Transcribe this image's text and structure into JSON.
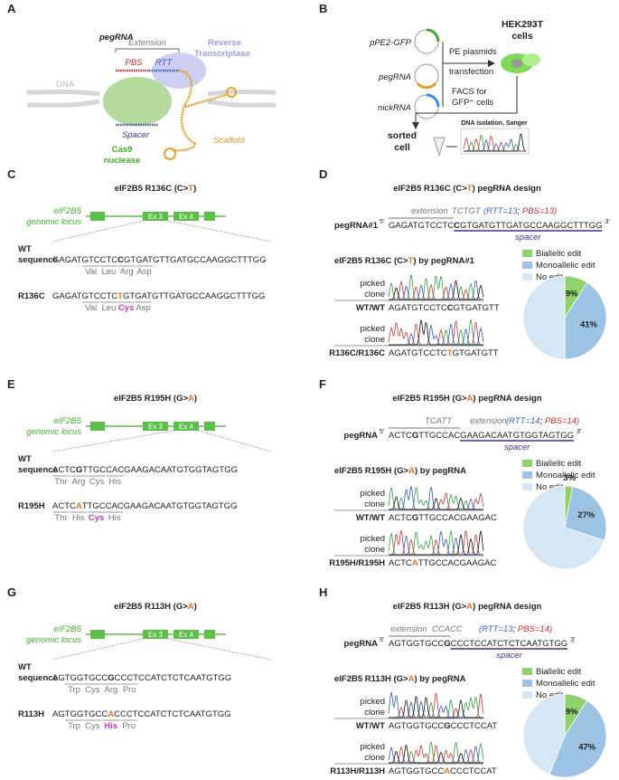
{
  "panels": {
    "A": {
      "letter": "A",
      "title": "pegRNA",
      "extension": "Extension",
      "pbs": "PBS",
      "rtt": "RTT",
      "rt": [
        "Reverse",
        "Transcriptase"
      ],
      "dna": "DNA",
      "spacer": "Spacer",
      "scaffold": "Scaffold",
      "cas9": [
        "Cas9",
        "nuclease"
      ]
    },
    "B": {
      "letter": "B",
      "plasmids": [
        "pPE2-GFP",
        "pegRNA",
        "nickRNA"
      ],
      "step1": [
        "PE plasmids",
        "transfection"
      ],
      "cells": [
        "HEK293T",
        "cells"
      ],
      "step2": [
        "FACS for",
        "GFP⁺ cells"
      ],
      "sorted": [
        "sorted",
        "cell"
      ],
      "sanger": "DNA isolation, Sanger"
    },
    "mutations": [
      {
        "letter": "C",
        "title": {
          "pre": "eIF2B5 R136C (C>",
          "alt": "T",
          "post": ")"
        },
        "locus": [
          "eIF2B5",
          "genomic locus"
        ],
        "exons": [
          "Ex 3",
          "Ex 4"
        ],
        "wt_label": [
          "WT",
          "sequence"
        ],
        "wt_seq": {
          "pre": "GAGATGTCCTC",
          "hi": "C",
          "post": "GTGATGTTGATGCCAAGGCTTTGG"
        },
        "wt_aa": [
          "Val",
          "Leu",
          "Arg",
          "Asp"
        ],
        "mut_label": "R136C",
        "mut_seq": {
          "pre": "GAGATGTCCTC",
          "hi": "T",
          "post": "GTGATGTTGATGCCAAGGCTTTGG"
        },
        "mut_aa": [
          "Val",
          "Leu",
          "Cys",
          "Asp"
        ]
      },
      {
        "letter": "E",
        "title": {
          "pre": "eIF2B5 R195H (G>",
          "alt": "A",
          "post": ")"
        },
        "locus": [
          "eIF2B5",
          "genomic locus"
        ],
        "exons": [
          "Ex 3",
          "Ex 4"
        ],
        "wt_label": [
          "WT",
          "sequence"
        ],
        "wt_seq": {
          "pre": "ACTC",
          "hi": "G",
          "post": "TTGCCACGAAGACAATGTGGTAGTGG"
        },
        "wt_aa": [
          "Thr",
          "Arg",
          "Cys",
          "His"
        ],
        "mut_label": "R195H",
        "mut_seq": {
          "pre": "ACTC",
          "hi": "A",
          "post": "TTGCCACGAAGACAATGTGGTAGTGG"
        },
        "mut_aa": [
          "Thr",
          "His",
          "Cys",
          "His"
        ]
      },
      {
        "letter": "G",
        "title": {
          "pre": "eIF2B5 R113H (G>",
          "alt": "A",
          "post": ")"
        },
        "locus": [
          "eIF2B5",
          "genomic locus"
        ],
        "exons": [
          "Ex 3",
          "Ex 4"
        ],
        "wt_label": [
          "WT",
          "sequence"
        ],
        "wt_seq": {
          "pre": "AGTGGTGCC",
          "hi": "G",
          "post": "CCCTCCATCTCTCAATGTGG"
        },
        "wt_aa": [
          "Trp",
          "Cys",
          "Arg",
          "Pro"
        ],
        "mut_label": "R113H",
        "mut_seq": {
          "pre": "AGTGGTGCC",
          "hi": "A",
          "post": "CCCTCCATCTCTCAATGTGG"
        },
        "mut_aa": [
          "Trp",
          "Cys",
          "His",
          "Pro"
        ]
      }
    ],
    "designs": [
      {
        "letter": "D",
        "title": {
          "pre": "eIF2B5 R136C (C>",
          "alt": "T",
          "post": ") pegRNA design"
        },
        "ext": "extension",
        "ext_seq": "TCTGT",
        "params": {
          "open": "(",
          "rtt": "RTT=13",
          "sep": "; ",
          "pbs": "PBS=13",
          "close": ")"
        },
        "name": "pegRNA#1",
        "five": "5'",
        "three": "3'",
        "seq": {
          "pre": "GAGATGTCCTC",
          "hi": "C",
          "post": "GTGATGTTGATGCCAAGGCTTTGG"
        },
        "spacer": "spacer",
        "subtitle": {
          "pre": "eIF2B5 R136C (C>",
          "alt": "T",
          "post": ") by pegRNA#1"
        },
        "traces": [
          {
            "label": [
              "picked",
              "clone"
            ],
            "geno": "WT/WT",
            "seq": {
              "pre": "AGATGTCCTC",
              "hi": "C",
              "post": "GTGATGTT"
            }
          },
          {
            "label": [
              "picked",
              "clone"
            ],
            "geno": "R136C/R136C",
            "seq": {
              "pre": "AGATGTCCTC",
              "hi": "T",
              "post": "GTGATGTT"
            }
          }
        ]
      },
      {
        "letter": "F",
        "title": {
          "pre": "eIF2B5 R195H (G>",
          "alt": "A",
          "post": ") pegRNA design"
        },
        "ext": "extension",
        "ext_seq": "TCATT",
        "params": {
          "open": "(",
          "rtt": "RTT=14",
          "sep": "; ",
          "pbs": "PBS=14",
          "close": ")"
        },
        "name": "pegRNA",
        "five": "5'",
        "three": "3'",
        "seq": {
          "pre": "ACTC",
          "hi": "G",
          "post": "TTGCCACGAAGACAATGTGGTAGTGG"
        },
        "spacer": "spacer",
        "subtitle": {
          "pre": "eIF2B5 R195H (G>",
          "alt": "A",
          "post": ") by pegRNA"
        },
        "traces": [
          {
            "label": [
              "picked",
              "clone"
            ],
            "geno": "WT/WT",
            "seq": {
              "pre": "ACTC",
              "hi": "G",
              "post": "TTGCCACGAAGAC"
            }
          },
          {
            "label": [
              "picked",
              "clone"
            ],
            "geno": "R195H/R195H",
            "seq": {
              "pre": "ACTC",
              "hi": "A",
              "post": "TTGCCACGAAGAC"
            }
          }
        ]
      },
      {
        "letter": "H",
        "title": {
          "pre": "eIF2B5 R113H (G>",
          "alt": "A",
          "post": ") pegRNA design"
        },
        "ext": "extension",
        "ext_seq": "CCACC",
        "params": {
          "open": "(",
          "rtt": "RTT=13",
          "sep": "; ",
          "pbs": "PBS=14",
          "close": ")"
        },
        "name": "pegRNA",
        "five": "5'",
        "three": "3'",
        "seq": {
          "pre": "AGTGGTGCC",
          "hi": "G",
          "post": "CCCTCCATCTCTCAATGTGG"
        },
        "spacer": "spacer",
        "subtitle": {
          "pre": "eIF2B5 R113H (G>",
          "alt": "A",
          "post": ") by pegRNA"
        },
        "traces": [
          {
            "label": [
              "picked",
              "clone"
            ],
            "geno": "WT/WT",
            "seq": {
              "pre": "AGTGGTGCC",
              "hi": "G",
              "post": "CCCTCCAT"
            }
          },
          {
            "label": [
              "picked",
              "clone"
            ],
            "geno": "R113H/R113H",
            "seq": {
              "pre": "AGTGGTGCC",
              "hi": "A",
              "post": "CCCTCCAT"
            }
          }
        ]
      }
    ]
  },
  "chart_data": [
    {
      "type": "pie",
      "categories": [
        "Biallelic edit",
        "Monoallelic edit",
        "No edit"
      ],
      "values": [
        9,
        41,
        50
      ],
      "value_labels": [
        "9%",
        "41%",
        null
      ],
      "colors": [
        "#8fd16a",
        "#9cc3e4",
        "#d5e6f4"
      ]
    },
    {
      "type": "pie",
      "categories": [
        "Biallelic edit",
        "Monoallelic edit",
        "No edit"
      ],
      "values": [
        3,
        27,
        70
      ],
      "value_labels": [
        "3%",
        "27%",
        null
      ],
      "colors": [
        "#8fd16a",
        "#9cc3e4",
        "#d5e6f4"
      ]
    },
    {
      "type": "pie",
      "categories": [
        "Biallelic edit",
        "Monoallelic edit",
        "No edit"
      ],
      "values": [
        9,
        47,
        44
      ],
      "value_labels": [
        "9%",
        "47%",
        null
      ],
      "colors": [
        "#8fd16a",
        "#9cc3e4",
        "#d5e6f4"
      ]
    }
  ]
}
